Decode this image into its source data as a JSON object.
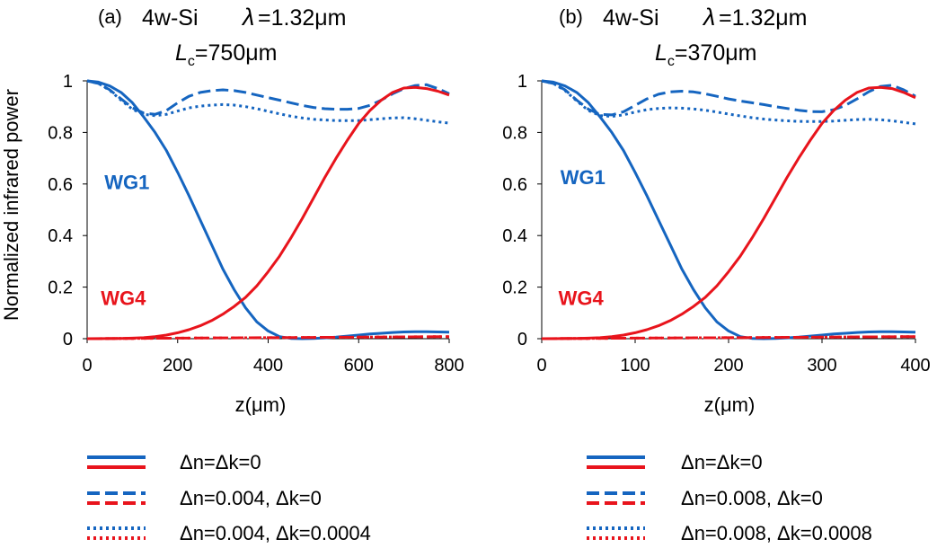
{
  "figure": {
    "ylabel": "Normalized infrared power",
    "colors": {
      "wg1": "#1565c0",
      "wg4": "#e8141c"
    },
    "legend_entries": [
      "Δn=Δk=0",
      "Δn=0.004, Δk=0",
      "Δn=0.004, Δk=0.0004",
      "Δn=Δk=0",
      "Δn=0.008, Δk=0",
      "Δn=0.008, Δk=0.0008"
    ]
  },
  "chart_data": [
    {
      "type": "line",
      "tag": "(a)",
      "device": "4w-Si",
      "lambda_sym": "λ",
      "wavelength": "=1.32μm",
      "lc_main": "L",
      "lc_sub": "c",
      "lc_value": "=750μm",
      "xlabel": "z(μm)",
      "ylabel": "Normalized infrared power",
      "xlim": [
        0,
        800
      ],
      "ylim": [
        0,
        1
      ],
      "xticks": [
        0,
        200,
        400,
        600,
        800
      ],
      "yticks": [
        0,
        0.2,
        0.4,
        0.6,
        0.8,
        1
      ],
      "ytick_labels": [
        "0",
        "0.2",
        "0.4",
        "0.6",
        "0.8",
        "1"
      ],
      "wg1_label": "WG1",
      "wg4_label": "WG4",
      "wg1_label_pos": [
        88,
        0.58
      ],
      "wg4_label_pos": [
        80,
        0.13
      ],
      "legend": [
        {
          "style": "solid",
          "text": "Δn=Δk=0"
        },
        {
          "style": "dashed",
          "text": "Δn=0.004, Δk=0"
        },
        {
          "style": "dotted",
          "text": "Δn=0.004, Δk=0.0004"
        }
      ],
      "series": [
        {
          "name": "WG1 Δn=Δk=0",
          "waveguide": "WG1",
          "style": "solid",
          "x": [
            0,
            25,
            50,
            75,
            100,
            125,
            150,
            175,
            200,
            225,
            250,
            275,
            300,
            325,
            350,
            375,
            400,
            425,
            450,
            475,
            500,
            525,
            550,
            575,
            600,
            625,
            650,
            675,
            700,
            725,
            750,
            775,
            800
          ],
          "y": [
            1,
            0.995,
            0.98,
            0.955,
            0.915,
            0.86,
            0.8,
            0.73,
            0.645,
            0.555,
            0.46,
            0.365,
            0.27,
            0.19,
            0.12,
            0.065,
            0.03,
            0.008,
            0.001,
            0,
            0.001,
            0.003,
            0.006,
            0.01,
            0.014,
            0.018,
            0.021,
            0.024,
            0.026,
            0.027,
            0.027,
            0.026,
            0.025
          ]
        },
        {
          "name": "WG1 Δn=0.004, Δk=0",
          "waveguide": "WG1",
          "style": "dashed",
          "x": [
            0,
            25,
            50,
            75,
            100,
            125,
            150,
            175,
            200,
            225,
            250,
            275,
            300,
            325,
            350,
            375,
            400,
            425,
            450,
            475,
            500,
            525,
            550,
            575,
            600,
            625,
            650,
            675,
            700,
            725,
            750,
            775,
            800
          ],
          "y": [
            1,
            0.99,
            0.965,
            0.93,
            0.895,
            0.875,
            0.87,
            0.885,
            0.915,
            0.94,
            0.955,
            0.962,
            0.965,
            0.962,
            0.955,
            0.945,
            0.935,
            0.925,
            0.915,
            0.905,
            0.897,
            0.892,
            0.89,
            0.89,
            0.893,
            0.905,
            0.925,
            0.95,
            0.97,
            0.982,
            0.985,
            0.97,
            0.95
          ]
        },
        {
          "name": "WG1 Δn=0.004, Δk=0.0004",
          "waveguide": "WG1",
          "style": "dotted",
          "x": [
            0,
            25,
            50,
            75,
            100,
            125,
            150,
            175,
            200,
            225,
            250,
            275,
            300,
            325,
            350,
            375,
            400,
            425,
            450,
            475,
            500,
            525,
            550,
            575,
            600,
            625,
            650,
            675,
            700,
            725,
            750,
            775,
            800
          ],
          "y": [
            1,
            0.99,
            0.963,
            0.925,
            0.89,
            0.87,
            0.865,
            0.87,
            0.883,
            0.895,
            0.902,
            0.906,
            0.908,
            0.906,
            0.9,
            0.892,
            0.882,
            0.872,
            0.863,
            0.856,
            0.851,
            0.848,
            0.846,
            0.846,
            0.846,
            0.849,
            0.853,
            0.856,
            0.857,
            0.853,
            0.847,
            0.841,
            0.836
          ]
        },
        {
          "name": "WG4 Δn=Δk=0",
          "waveguide": "WG4",
          "style": "solid",
          "x": [
            0,
            25,
            50,
            75,
            100,
            125,
            150,
            175,
            200,
            225,
            250,
            275,
            300,
            325,
            350,
            375,
            400,
            425,
            450,
            475,
            500,
            525,
            550,
            575,
            600,
            625,
            650,
            675,
            700,
            725,
            750,
            775,
            800
          ],
          "y": [
            0,
            0,
            0.001,
            0.001,
            0.002,
            0.004,
            0.008,
            0.014,
            0.023,
            0.035,
            0.05,
            0.07,
            0.095,
            0.125,
            0.16,
            0.205,
            0.26,
            0.32,
            0.39,
            0.465,
            0.545,
            0.625,
            0.7,
            0.77,
            0.835,
            0.885,
            0.925,
            0.955,
            0.972,
            0.975,
            0.97,
            0.96,
            0.945
          ]
        },
        {
          "name": "WG4 Δn=0.004, Δk=0",
          "waveguide": "WG4",
          "style": "dashed",
          "x": [
            0,
            100,
            200,
            300,
            400,
            500,
            600,
            700,
            800
          ],
          "y": [
            0,
            0.001,
            0.002,
            0.003,
            0.004,
            0.005,
            0.006,
            0.007,
            0.008
          ]
        },
        {
          "name": "WG4 Δn=0.004, Δk=0.0004",
          "waveguide": "WG4",
          "style": "dotted",
          "x": [
            0,
            100,
            200,
            300,
            400,
            500,
            600,
            700,
            800
          ],
          "y": [
            0,
            0.001,
            0.002,
            0.003,
            0.004,
            0.005,
            0.006,
            0.007,
            0.008
          ]
        }
      ]
    },
    {
      "type": "line",
      "tag": "(b)",
      "device": "4w-Si",
      "lambda_sym": "λ",
      "wavelength": "=1.32μm",
      "lc_main": "L",
      "lc_sub": "c",
      "lc_value": "=370μm",
      "xlabel": "z(μm)",
      "ylabel": "",
      "xlim": [
        0,
        400
      ],
      "ylim": [
        0,
        1
      ],
      "xticks": [
        0,
        100,
        200,
        300,
        400
      ],
      "yticks": [
        0,
        0.2,
        0.4,
        0.6,
        0.8,
        1
      ],
      "ytick_labels": [
        "0",
        "0.2",
        "0.4",
        "0.6",
        "0.8",
        "1"
      ],
      "wg1_label": "WG1",
      "wg4_label": "WG4",
      "wg1_label_pos": [
        44,
        0.6
      ],
      "wg4_label_pos": [
        42,
        0.13
      ],
      "legend": [
        {
          "style": "solid",
          "text": "Δn=Δk=0"
        },
        {
          "style": "dashed",
          "text": "Δn=0.008, Δk=0"
        },
        {
          "style": "dotted",
          "text": "Δn=0.008, Δk=0.0008"
        }
      ],
      "series": [
        {
          "name": "WG1 Δn=Δk=0",
          "waveguide": "WG1",
          "style": "solid",
          "x": [
            0,
            12.5,
            25,
            37.5,
            50,
            62.5,
            75,
            87.5,
            100,
            112.5,
            125,
            137.5,
            150,
            162.5,
            175,
            187.5,
            200,
            212.5,
            225,
            237.5,
            250,
            262.5,
            275,
            287.5,
            300,
            312.5,
            325,
            337.5,
            350,
            362.5,
            375,
            387.5,
            400
          ],
          "y": [
            1,
            0.995,
            0.98,
            0.955,
            0.915,
            0.86,
            0.8,
            0.73,
            0.645,
            0.555,
            0.46,
            0.365,
            0.27,
            0.19,
            0.12,
            0.065,
            0.03,
            0.008,
            0.001,
            0,
            0.001,
            0.003,
            0.006,
            0.01,
            0.014,
            0.018,
            0.021,
            0.024,
            0.026,
            0.027,
            0.027,
            0.026,
            0.025
          ]
        },
        {
          "name": "WG1 Δn=0.008, Δk=0",
          "waveguide": "WG1",
          "style": "dashed",
          "x": [
            0,
            12.5,
            25,
            37.5,
            50,
            62.5,
            75,
            87.5,
            100,
            112.5,
            125,
            137.5,
            150,
            162.5,
            175,
            187.5,
            200,
            212.5,
            225,
            237.5,
            250,
            262.5,
            275,
            287.5,
            300,
            312.5,
            325,
            337.5,
            350,
            362.5,
            375,
            387.5,
            400
          ],
          "y": [
            1,
            0.99,
            0.965,
            0.925,
            0.89,
            0.87,
            0.868,
            0.88,
            0.905,
            0.93,
            0.948,
            0.957,
            0.96,
            0.957,
            0.95,
            0.94,
            0.93,
            0.922,
            0.915,
            0.908,
            0.9,
            0.893,
            0.886,
            0.881,
            0.88,
            0.888,
            0.905,
            0.93,
            0.958,
            0.978,
            0.983,
            0.965,
            0.94
          ]
        },
        {
          "name": "WG1 Δn=0.008, Δk=0.0008",
          "waveguide": "WG1",
          "style": "dotted",
          "x": [
            0,
            12.5,
            25,
            37.5,
            50,
            62.5,
            75,
            87.5,
            100,
            112.5,
            125,
            137.5,
            150,
            162.5,
            175,
            187.5,
            200,
            212.5,
            225,
            237.5,
            250,
            262.5,
            275,
            287.5,
            300,
            312.5,
            325,
            337.5,
            350,
            362.5,
            375,
            387.5,
            400
          ],
          "y": [
            1,
            0.99,
            0.962,
            0.922,
            0.885,
            0.865,
            0.862,
            0.868,
            0.879,
            0.888,
            0.893,
            0.895,
            0.894,
            0.891,
            0.886,
            0.879,
            0.871,
            0.864,
            0.857,
            0.852,
            0.848,
            0.845,
            0.843,
            0.842,
            0.842,
            0.844,
            0.847,
            0.85,
            0.851,
            0.849,
            0.845,
            0.839,
            0.833
          ]
        },
        {
          "name": "WG4 Δn=Δk=0",
          "waveguide": "WG4",
          "style": "solid",
          "x": [
            0,
            12.5,
            25,
            37.5,
            50,
            62.5,
            75,
            87.5,
            100,
            112.5,
            125,
            137.5,
            150,
            162.5,
            175,
            187.5,
            200,
            212.5,
            225,
            237.5,
            250,
            262.5,
            275,
            287.5,
            300,
            312.5,
            325,
            337.5,
            350,
            362.5,
            375,
            387.5,
            400
          ],
          "y": [
            0,
            0,
            0.001,
            0.001,
            0.002,
            0.004,
            0.008,
            0.014,
            0.023,
            0.035,
            0.05,
            0.07,
            0.095,
            0.125,
            0.16,
            0.205,
            0.26,
            0.32,
            0.39,
            0.465,
            0.545,
            0.625,
            0.7,
            0.77,
            0.835,
            0.885,
            0.925,
            0.955,
            0.972,
            0.975,
            0.97,
            0.955,
            0.935
          ]
        },
        {
          "name": "WG4 Δn=0.008, Δk=0",
          "waveguide": "WG4",
          "style": "dashed",
          "x": [
            0,
            50,
            100,
            150,
            200,
            250,
            300,
            350,
            400
          ],
          "y": [
            0,
            0.001,
            0.002,
            0.003,
            0.004,
            0.005,
            0.006,
            0.007,
            0.008
          ]
        },
        {
          "name": "WG4 Δn=0.008, Δk=0.0008",
          "waveguide": "WG4",
          "style": "dotted",
          "x": [
            0,
            50,
            100,
            150,
            200,
            250,
            300,
            350,
            400
          ],
          "y": [
            0,
            0.001,
            0.002,
            0.003,
            0.004,
            0.005,
            0.006,
            0.007,
            0.008
          ]
        }
      ]
    }
  ]
}
